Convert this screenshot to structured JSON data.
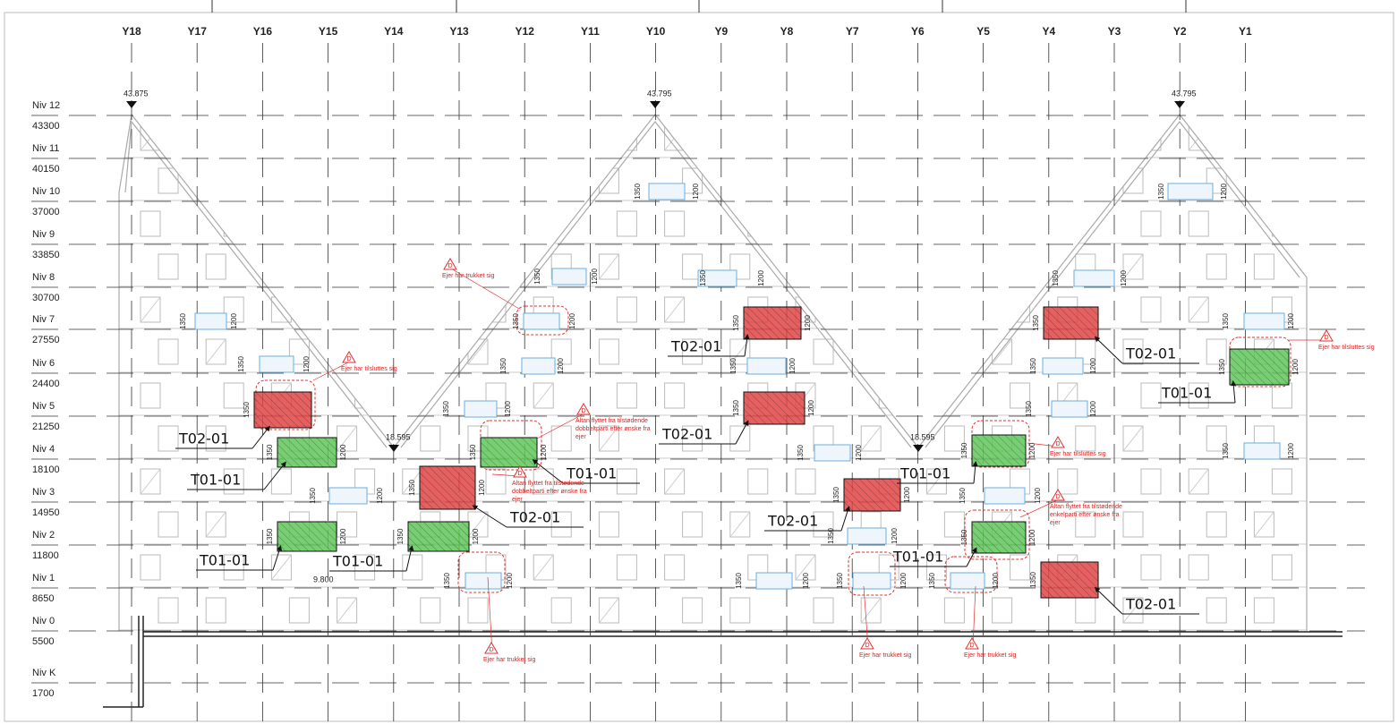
{
  "grid_labels": [
    "Y18",
    "Y17",
    "Y16",
    "Y15",
    "Y14",
    "Y13",
    "Y12",
    "Y11",
    "Y10",
    "Y9",
    "Y8",
    "Y7",
    "Y6",
    "Y5",
    "Y4",
    "Y3",
    "Y2",
    "Y1"
  ],
  "levels": [
    {
      "name": "Niv 12",
      "elevation": "43300"
    },
    {
      "name": "Niv 11",
      "elevation": "40150"
    },
    {
      "name": "Niv 10",
      "elevation": "37000"
    },
    {
      "name": "Niv 9",
      "elevation": "33850"
    },
    {
      "name": "Niv 8",
      "elevation": "30700"
    },
    {
      "name": "Niv 7",
      "elevation": "27550"
    },
    {
      "name": "Niv 6",
      "elevation": "24400"
    },
    {
      "name": "Niv 5",
      "elevation": "21250"
    },
    {
      "name": "Niv 4",
      "elevation": "18100"
    },
    {
      "name": "Niv 3",
      "elevation": "14950"
    },
    {
      "name": "Niv 2",
      "elevation": "11800"
    },
    {
      "name": "Niv 1",
      "elevation": "8650"
    },
    {
      "name": "Niv 0",
      "elevation": "5500"
    },
    {
      "name": "Niv K",
      "elevation": "1700"
    }
  ],
  "elevation_marks": [
    "43.875",
    "43.795",
    "43.795",
    "18.595",
    "18.595",
    "9.800"
  ],
  "tags": [
    {
      "label": "T02-01",
      "color": "#e04545",
      "dims": [
        "1350"
      ]
    },
    {
      "label": "T01-01",
      "color": "#5fc65a",
      "dims": [
        "1350",
        "1200"
      ]
    },
    {
      "label": "T01-01",
      "color": "#5fc65a",
      "dims": [
        "1350",
        "1200"
      ]
    },
    {
      "label": "T01-01",
      "color": "#5fc65a",
      "dims": [
        "1350",
        "1200"
      ]
    },
    {
      "label": "T02-01",
      "color": "#e04545",
      "dims": [
        "1350",
        "1200"
      ]
    },
    {
      "label": "T01-01",
      "color": "#5fc65a",
      "dims": [
        "1350",
        "1200"
      ]
    },
    {
      "label": "T02-01",
      "color": "#e04545",
      "dims": [
        "1350",
        "1200"
      ]
    },
    {
      "label": "T02-01",
      "color": "#e04545",
      "dims": [
        "1350",
        "1200"
      ]
    },
    {
      "label": "T02-01",
      "color": "#e04545",
      "dims": [
        "1350",
        "1200"
      ]
    },
    {
      "label": "T01-01",
      "color": "#5fc65a",
      "dims": [
        "1350",
        "1200"
      ]
    },
    {
      "label": "T01-01",
      "color": "#5fc65a",
      "dims": [
        "1350",
        "1200"
      ]
    },
    {
      "label": "T02-01",
      "color": "#e04545",
      "dims": [
        "1350"
      ]
    },
    {
      "label": "T02-01",
      "color": "#e04545",
      "dims": [
        "1350"
      ]
    },
    {
      "label": "T01-01",
      "color": "#5fc65a",
      "dims": [
        "1350",
        "1200"
      ]
    }
  ],
  "annotations": [
    {
      "symbol": "D",
      "lines": [
        "Ejer har trukket sig"
      ]
    },
    {
      "symbol": "D",
      "lines": [
        "Ejer har tilsluttes sig"
      ]
    },
    {
      "symbol": "D",
      "lines": [
        "Altan flyttet fra tilstødende",
        "dobbeltparti efter ønske fra",
        "ejer"
      ]
    },
    {
      "symbol": "D",
      "lines": [
        "Altan flyttet fra tilstødende",
        "dobbeltparti efter ønske fra",
        "ejer"
      ]
    },
    {
      "symbol": "D",
      "lines": [
        "Ejer har tilsluttes sig"
      ]
    },
    {
      "symbol": "D",
      "lines": [
        "Ejer har tilsluttes sig"
      ]
    },
    {
      "symbol": "D",
      "lines": [
        "Altan flyttet fra tilstødende",
        "enkelparti efter ønske fra",
        "ejer"
      ]
    },
    {
      "symbol": "D",
      "lines": [
        "Ejer har trukket sig"
      ]
    },
    {
      "symbol": "D",
      "lines": [
        "Ejer har trukket sig"
      ]
    },
    {
      "symbol": "D",
      "lines": [
        "Ejer har trukket sig"
      ]
    }
  ],
  "balconies": [
    {
      "left": "1350",
      "right": "1200"
    },
    {
      "left": "1350",
      "right": "1200"
    },
    {
      "left": "1350",
      "right": "1200"
    },
    {
      "left": "1350",
      "right": "1200"
    },
    {
      "left": "1350",
      "right": "1200"
    },
    {
      "left": "1350",
      "right": "1200"
    },
    {
      "left": "1350",
      "right": "1200"
    },
    {
      "left": "1350",
      "right": "1200"
    },
    {
      "left": "1350",
      "right": "1200"
    },
    {
      "left": "1350",
      "right": "1200"
    },
    {
      "left": "1350",
      "right": "1200"
    },
    {
      "left": "1350",
      "right": "1200"
    },
    {
      "left": "1350",
      "right": "1200"
    },
    {
      "left": "1350",
      "right": "1200"
    },
    {
      "left": "1350",
      "right": "1200"
    },
    {
      "left": "1350",
      "right": "1200"
    },
    {
      "left": "1350",
      "right": "1200"
    },
    {
      "left": "1350",
      "right": "1200"
    },
    {
      "left": "1350",
      "right": "1200"
    },
    {
      "left": "1350",
      "right": "1200"
    },
    {
      "left": "1350",
      "right": "1200"
    },
    {
      "left": "1350",
      "right": "1200"
    },
    {
      "left": "1350",
      "right": "1200"
    }
  ]
}
